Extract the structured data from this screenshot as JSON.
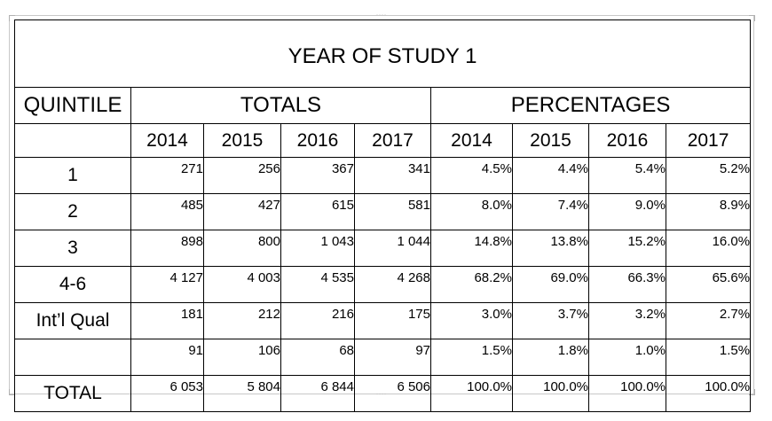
{
  "table": {
    "title": "YEAR OF STUDY 1",
    "row_header": "QUINTILE",
    "group_totals": "TOTALS",
    "group_percentages": "PERCENTAGES",
    "years": [
      "2014",
      "2015",
      "2016",
      "2017"
    ],
    "rows": [
      {
        "label": "1",
        "totals": [
          "271",
          "256",
          "367",
          "341"
        ],
        "percentages": [
          "4.5%",
          "4.4%",
          "5.4%",
          "5.2%"
        ]
      },
      {
        "label": "2",
        "totals": [
          "485",
          "427",
          "615",
          "581"
        ],
        "percentages": [
          "8.0%",
          "7.4%",
          "9.0%",
          "8.9%"
        ]
      },
      {
        "label": "3",
        "totals": [
          "898",
          "800",
          "1 043",
          "1 044"
        ],
        "percentages": [
          "14.8%",
          "13.8%",
          "15.2%",
          "16.0%"
        ]
      },
      {
        "label": "4-6",
        "totals": [
          "4 127",
          "4 003",
          "4 535",
          "4 268"
        ],
        "percentages": [
          "68.2%",
          "69.0%",
          "66.3%",
          "65.6%"
        ]
      },
      {
        "label": "Int’l Qual",
        "totals": [
          "181",
          "212",
          "216",
          "175"
        ],
        "percentages": [
          "3.0%",
          "3.7%",
          "3.2%",
          "2.7%"
        ]
      },
      {
        "label": "",
        "totals": [
          "91",
          "106",
          "68",
          "97"
        ],
        "percentages": [
          "1.5%",
          "1.8%",
          "1.0%",
          "1.5%"
        ]
      },
      {
        "label": "TOTAL",
        "totals": [
          "6 053",
          "5 804",
          "6 844",
          "6 506"
        ],
        "percentages": [
          "100.0%",
          "100.0%",
          "100.0%",
          "100.0%"
        ]
      }
    ]
  }
}
